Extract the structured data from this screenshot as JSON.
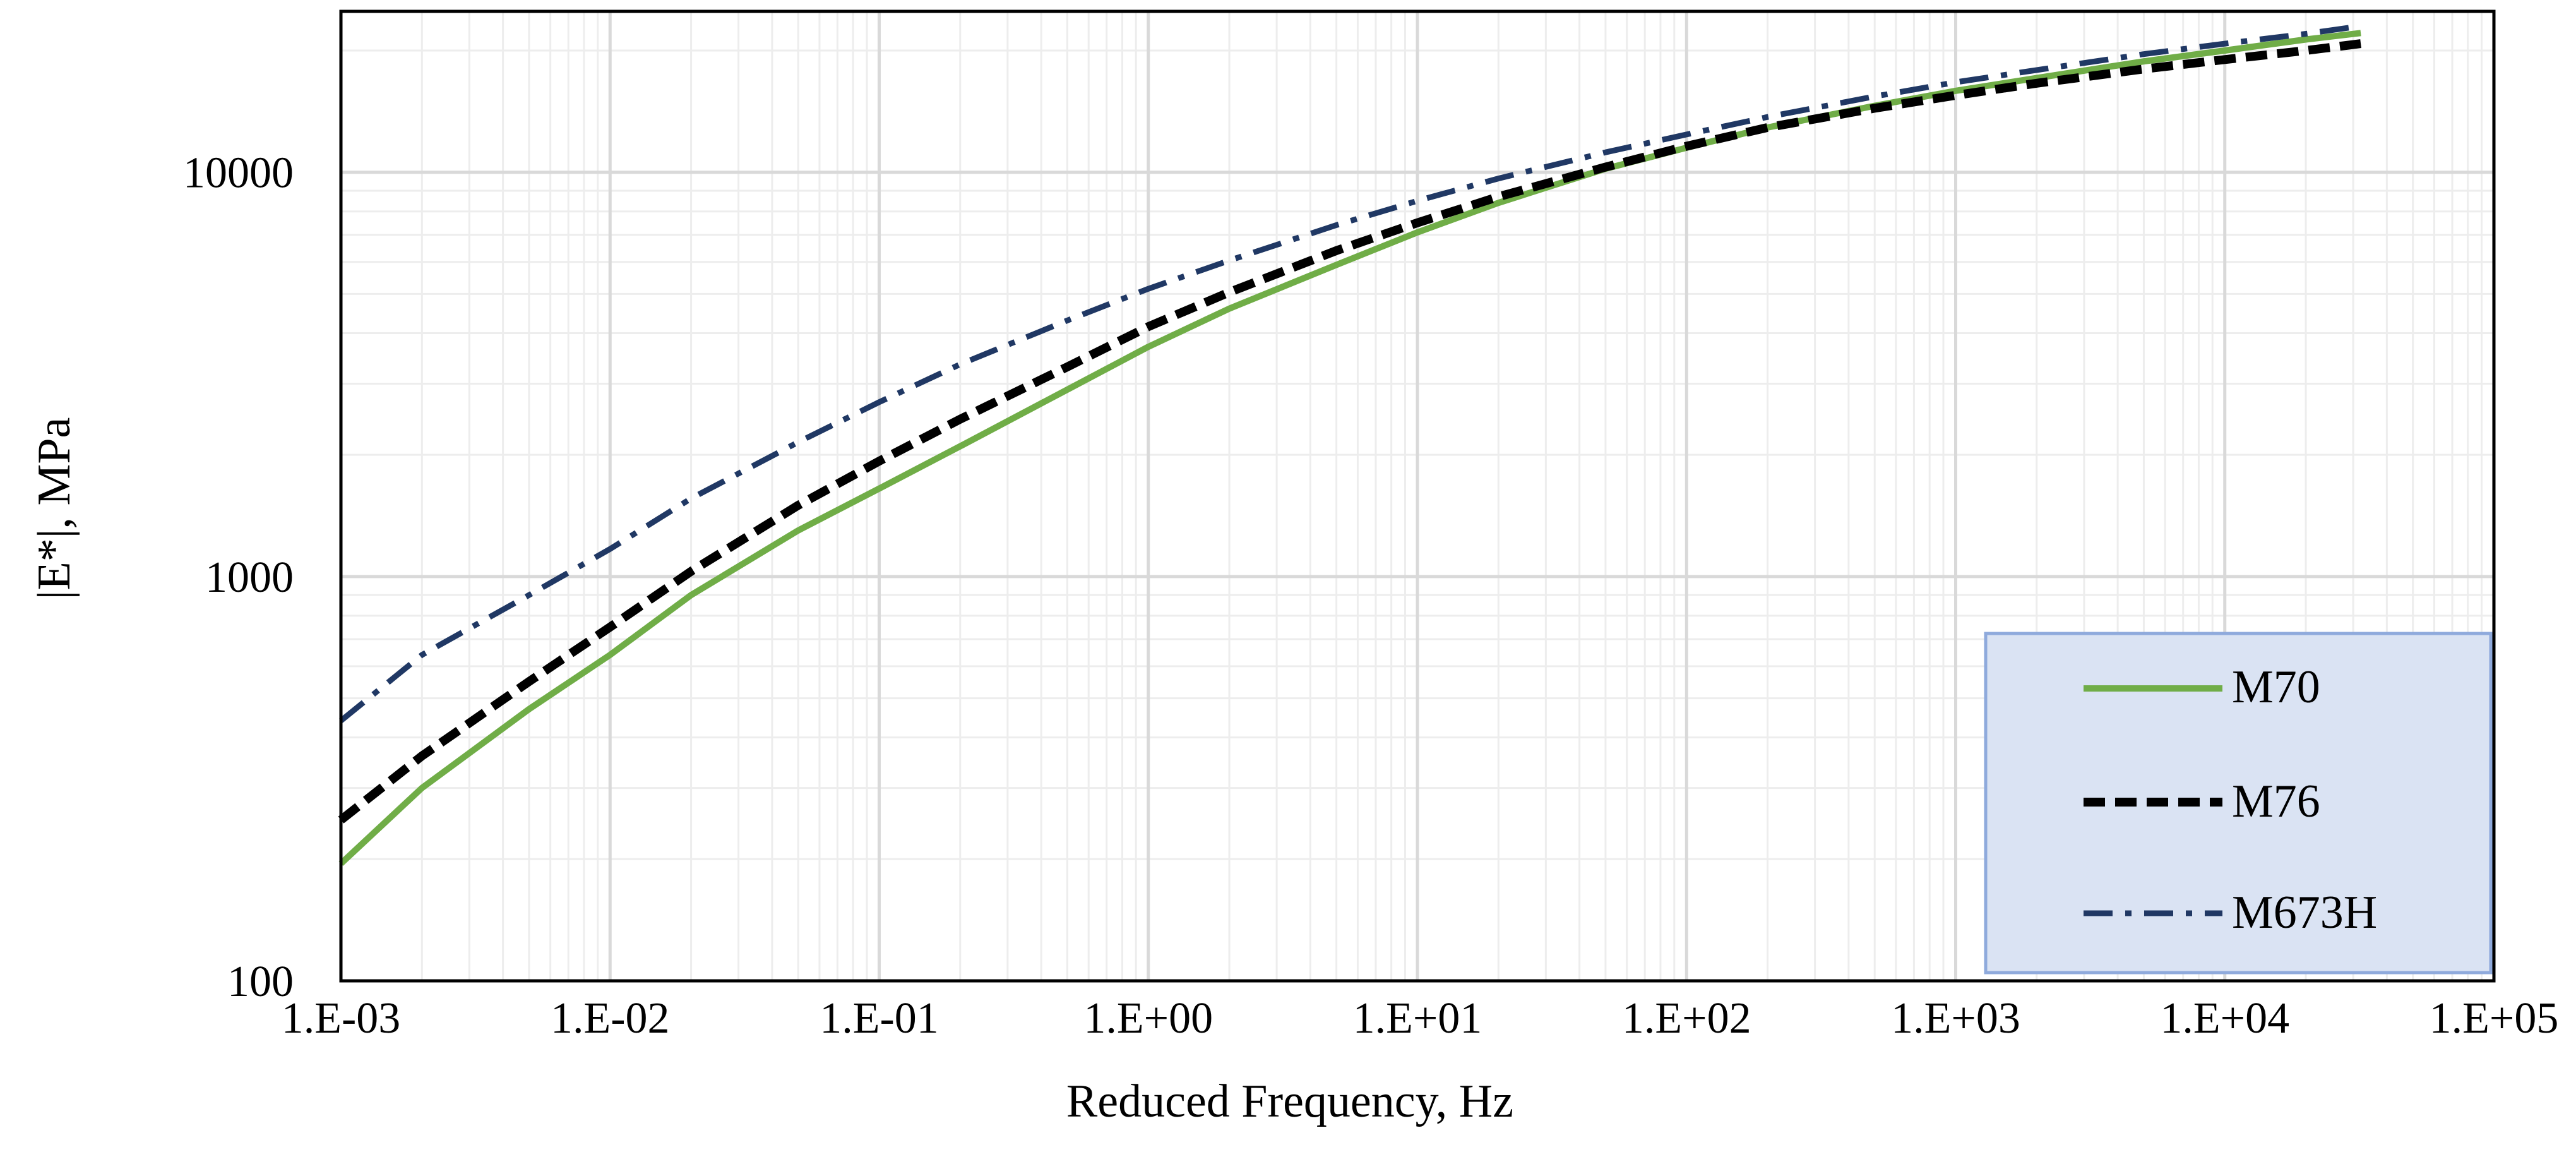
{
  "chart_data": {
    "type": "line",
    "title": "",
    "xlabel": "Reduced Frequency, Hz",
    "ylabel": "|E*|, MPa",
    "x_scale": "log",
    "y_scale": "log",
    "xlim": [
      0.001,
      100000
    ],
    "ylim": [
      100,
      25000
    ],
    "x_major_ticks": [
      0.001,
      0.01,
      0.1,
      1,
      10,
      100,
      1000,
      10000,
      100000
    ],
    "x_tick_labels": [
      "1.E-03",
      "1.E-02",
      "1.E-01",
      "1.E+00",
      "1.E+01",
      "1.E+02",
      "1.E+03",
      "1.E+04",
      "1.E+05"
    ],
    "y_major_ticks": [
      100,
      1000,
      10000
    ],
    "y_tick_labels": [
      "100",
      "1000",
      "10000"
    ],
    "grid": true,
    "legend_position": "bottom-right",
    "x": [
      0.001,
      0.002,
      0.005,
      0.01,
      0.02,
      0.05,
      0.1,
      0.2,
      0.5,
      1,
      2,
      5,
      10,
      20,
      50,
      100,
      200,
      500,
      1000,
      2000,
      5000,
      10000,
      20000,
      32000
    ],
    "series": [
      {
        "name": "M70",
        "color": "#70ad47",
        "dash": "solid",
        "values": [
          195,
          300,
          470,
          640,
          900,
          1300,
          1650,
          2100,
          2900,
          3700,
          4600,
          5900,
          7100,
          8400,
          10200,
          11500,
          12900,
          14600,
          15900,
          17100,
          18800,
          20000,
          21300,
          22100
        ]
      },
      {
        "name": "M76",
        "color": "#000000",
        "dash": "dashed",
        "values": [
          250,
          360,
          550,
          750,
          1030,
          1500,
          1930,
          2450,
          3300,
          4150,
          5050,
          6400,
          7500,
          8700,
          10300,
          11600,
          12900,
          14400,
          15500,
          16600,
          18000,
          19000,
          20000,
          20800
        ]
      },
      {
        "name": "M673H",
        "color": "#203864",
        "dash": "dash-dot",
        "values": [
          440,
          640,
          900,
          1170,
          1560,
          2150,
          2700,
          3350,
          4300,
          5150,
          6050,
          7400,
          8500,
          9650,
          11200,
          12400,
          13700,
          15400,
          16700,
          17900,
          19600,
          20800,
          22000,
          23000
        ]
      }
    ],
    "legend": [
      "M70",
      "M76",
      "M673H"
    ]
  },
  "style": {
    "grid_major_color": "#d9d9d9",
    "grid_minor_color": "#ededed",
    "axis_color": "#000000",
    "legend_background": "#dae3f3",
    "legend_border": "#8faadc"
  }
}
